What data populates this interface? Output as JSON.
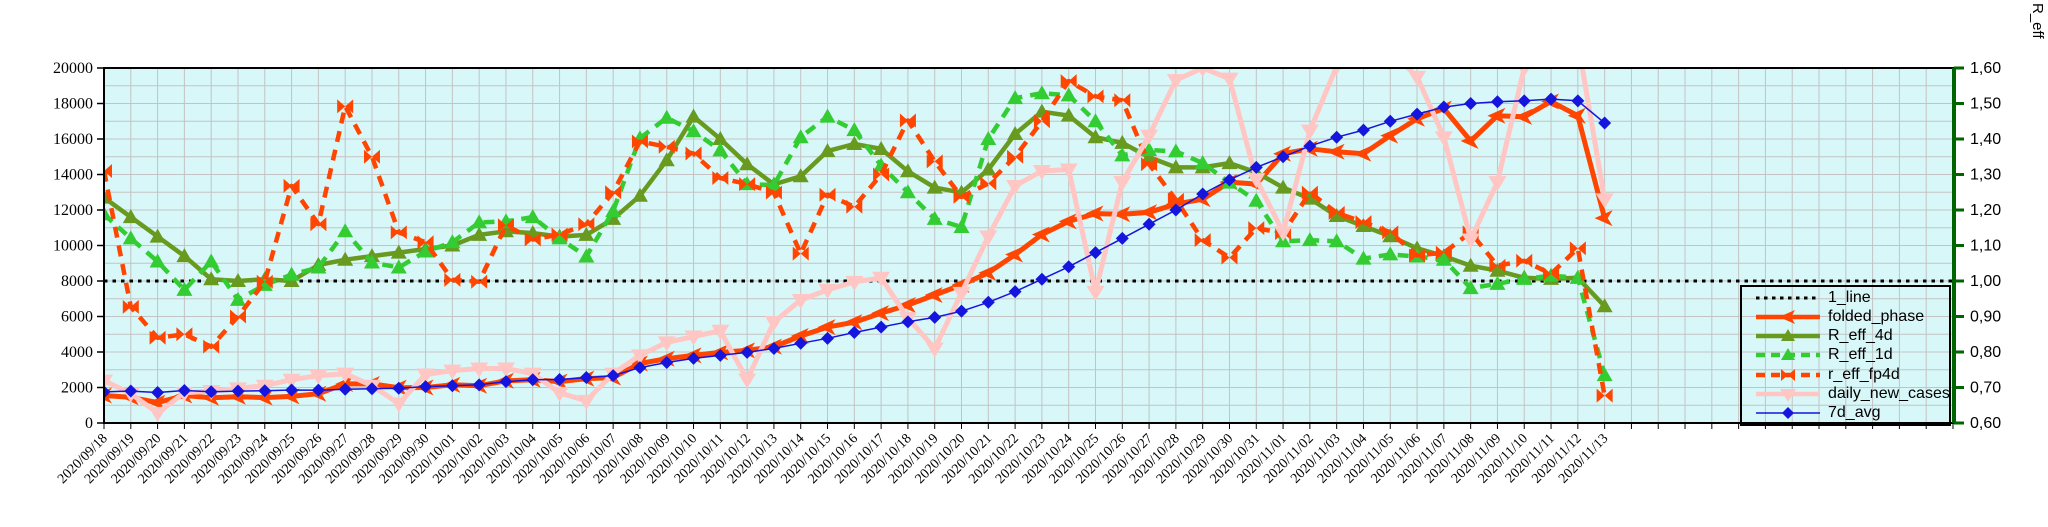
{
  "chart_data": {
    "type": "line",
    "title": "",
    "plot_bg_color": "#d8f7f8",
    "grid_color": "#c3c3c3",
    "frame_color": "#000000",
    "grid": true,
    "legend_position": "inside-right",
    "x_labels": [
      "2020/09/18",
      "2020/09/19",
      "2020/09/20",
      "2020/09/21",
      "2020/09/22",
      "2020/09/23",
      "2020/09/24",
      "2020/09/25",
      "2020/09/26",
      "2020/09/27",
      "2020/09/28",
      "2020/09/29",
      "2020/09/30",
      "2020/10/01",
      "2020/10/02",
      "2020/10/03",
      "2020/10/04",
      "2020/10/05",
      "2020/10/06",
      "2020/10/07",
      "2020/10/08",
      "2020/10/09",
      "2020/10/10",
      "2020/10/11",
      "2020/10/12",
      "2020/10/13",
      "2020/10/14",
      "2020/10/15",
      "2020/10/16",
      "2020/10/17",
      "2020/10/18",
      "2020/10/19",
      "2020/10/20",
      "2020/10/21",
      "2020/10/22",
      "2020/10/23",
      "2020/10/24",
      "2020/10/25",
      "2020/10/26",
      "2020/10/27",
      "2020/10/28",
      "2020/10/29",
      "2020/10/30",
      "2020/10/31",
      "2020/11/01",
      "2020/11/02",
      "2020/11/03",
      "2020/11/04",
      "2020/11/05",
      "2020/11/06",
      "2020/11/07",
      "2020/11/08",
      "2020/11/09",
      "2020/11/10",
      "2020/11/11",
      "2020/11/12",
      "2020/11/13"
    ],
    "x_extra_unlabeled_columns": 13,
    "left_axis": {
      "min": 0,
      "max": 20000,
      "tick_step": 2000,
      "minor_grid_step": 1000
    },
    "right_axis": {
      "label": "R_eff",
      "min": 0.6,
      "max": 1.6,
      "tick_step": 0.1,
      "color": "#006400",
      "tick_labels": [
        "0,60",
        "0,70",
        "0,80",
        "0,90",
        "1,00",
        "1,10",
        "1,20",
        "1,30",
        "1,40",
        "1,50",
        "1,60"
      ]
    },
    "series": [
      {
        "name": "1_line",
        "axis": "right",
        "style": "dotted",
        "color": "#000000",
        "marker": "none",
        "width": 3,
        "constant": 1.0
      },
      {
        "name": "folded_phase",
        "axis": "left",
        "style": "solid",
        "color": "#ff4500",
        "marker": "arrow-left",
        "width": 5,
        "values": [
          1550,
          1450,
          1150,
          1550,
          1420,
          1480,
          1430,
          1500,
          1650,
          2200,
          2200,
          1990,
          2000,
          2150,
          2100,
          2380,
          2440,
          2330,
          2500,
          2560,
          3350,
          3620,
          3810,
          3980,
          4090,
          4300,
          4900,
          5400,
          5680,
          6190,
          6650,
          7210,
          7780,
          8460,
          9490,
          10620,
          11360,
          11800,
          11760,
          11870,
          12330,
          12610,
          13570,
          13460,
          15170,
          15450,
          15280,
          15170,
          16190,
          17140,
          17710,
          15890,
          17310,
          17250,
          18110,
          17310,
          11540
        ]
      },
      {
        "name": "R_eff_4d",
        "axis": "right",
        "style": "solid",
        "color": "#689a20",
        "marker": "triangle-up",
        "width": 4.5,
        "values": [
          1.235,
          1.18,
          1.125,
          1.07,
          1.005,
          1.0,
          1.005,
          1.0,
          1.045,
          1.06,
          1.07,
          1.08,
          1.09,
          1.1,
          1.13,
          1.14,
          1.135,
          1.125,
          1.13,
          1.175,
          1.24,
          1.34,
          1.463,
          1.4,
          1.329,
          1.272,
          1.295,
          1.366,
          1.386,
          1.372,
          1.309,
          1.263,
          1.249,
          1.314,
          1.414,
          1.477,
          1.466,
          1.405,
          1.389,
          1.349,
          1.32,
          1.32,
          1.332,
          1.306,
          1.263,
          1.232,
          1.183,
          1.155,
          1.126,
          1.092,
          1.07,
          1.043,
          1.029,
          1.009,
          1.006,
          1.009,
          0.929
        ]
      },
      {
        "name": "R_eff_1d",
        "axis": "right",
        "style": "dashed",
        "color": "#33cc33",
        "marker": "triangle-up",
        "width": 4.5,
        "values": [
          1.188,
          1.12,
          1.055,
          0.975,
          1.055,
          0.947,
          0.989,
          1.018,
          1.038,
          1.14,
          1.052,
          1.038,
          1.083,
          1.109,
          1.165,
          1.168,
          1.18,
          1.12,
          1.069,
          1.197,
          1.402,
          1.46,
          1.422,
          1.368,
          1.273,
          1.27,
          1.405,
          1.463,
          1.425,
          1.325,
          1.25,
          1.175,
          1.152,
          1.4,
          1.515,
          1.529,
          1.523,
          1.45,
          1.354,
          1.369,
          1.365,
          1.332,
          1.277,
          1.226,
          1.112,
          1.115,
          1.112,
          1.063,
          1.075,
          1.069,
          1.06,
          0.98,
          0.992,
          1.006,
          1.015,
          1.009,
          0.735
        ]
      },
      {
        "name": "r_eff_fp4d",
        "axis": "right",
        "style": "dashed",
        "color": "#ff4500",
        "marker": "bowtie",
        "width": 4.5,
        "values": [
          1.31,
          0.927,
          0.84,
          0.85,
          0.815,
          0.9,
          0.998,
          1.268,
          1.16,
          1.492,
          1.35,
          1.137,
          1.109,
          1.003,
          0.998,
          1.157,
          1.117,
          1.131,
          1.16,
          1.25,
          1.393,
          1.378,
          1.359,
          1.29,
          1.273,
          1.249,
          1.077,
          1.243,
          1.209,
          1.3,
          1.452,
          1.337,
          1.237,
          1.275,
          1.35,
          1.45,
          1.563,
          1.52,
          1.509,
          1.329,
          1.229,
          1.115,
          1.066,
          1.149,
          1.135,
          1.249,
          1.192,
          1.166,
          1.137,
          1.072,
          1.08,
          1.137,
          1.043,
          1.057,
          1.02,
          1.092,
          0.677
        ]
      },
      {
        "name": "daily_new_cases",
        "axis": "left",
        "style": "solid",
        "color": "#ffc6c3",
        "marker": "triangle-down",
        "width": 5,
        "values": [
          2390,
          1650,
          570,
          1700,
          1800,
          1950,
          2100,
          2440,
          2670,
          2780,
          2100,
          1100,
          2730,
          2950,
          3070,
          3070,
          2780,
          1700,
          1250,
          2780,
          3810,
          4540,
          4870,
          5200,
          2450,
          5680,
          6930,
          7500,
          7950,
          8180,
          5910,
          4200,
          7330,
          10510,
          13350,
          14200,
          14280,
          7390,
          13570,
          16190,
          19320,
          20000,
          19400,
          13740,
          10740,
          16470,
          20100,
          21000,
          21000,
          19500,
          16100,
          10340,
          13570,
          20000,
          21500,
          21500,
          12600
        ]
      },
      {
        "name": "7d_avg",
        "axis": "left",
        "style": "solid",
        "color": "#1515dd",
        "marker": "diamond",
        "width": 1.5,
        "values": [
          1750,
          1800,
          1720,
          1830,
          1760,
          1800,
          1820,
          1860,
          1850,
          1900,
          1930,
          1960,
          2050,
          2100,
          2150,
          2330,
          2440,
          2450,
          2560,
          2670,
          3120,
          3410,
          3640,
          3810,
          3980,
          4200,
          4490,
          4770,
          5100,
          5400,
          5700,
          5950,
          6300,
          6800,
          7400,
          8100,
          8800,
          9600,
          10400,
          11200,
          12000,
          12900,
          13700,
          14400,
          15000,
          15600,
          16100,
          16500,
          17000,
          17400,
          17800,
          18000,
          18100,
          18150,
          18250,
          18150,
          16900
        ]
      }
    ]
  }
}
